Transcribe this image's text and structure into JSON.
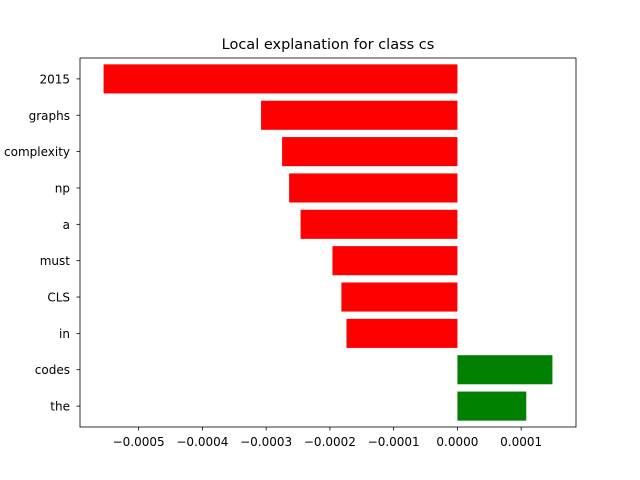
{
  "chart_data": {
    "type": "bar",
    "orientation": "horizontal",
    "title": "Local explanation for class cs",
    "xlabel": "",
    "ylabel": "",
    "categories": [
      "2015",
      "graphs",
      "complexity",
      "np",
      "a",
      "must",
      "CLS",
      "in",
      "codes",
      "the"
    ],
    "values": [
      -0.000555,
      -0.000308,
      -0.000275,
      -0.000264,
      -0.000246,
      -0.000196,
      -0.000182,
      -0.000174,
      0.000149,
      0.000108
    ],
    "colors": [
      "#ff0000",
      "#ff0000",
      "#ff0000",
      "#ff0000",
      "#ff0000",
      "#ff0000",
      "#ff0000",
      "#ff0000",
      "#008000",
      "#008000"
    ],
    "xlim": [
      -0.000592,
      0.000186
    ],
    "xticks": [
      -0.0005,
      -0.0004,
      -0.0003,
      -0.0002,
      -0.0001,
      0.0,
      0.0001
    ],
    "xtick_labels": [
      "−0.0005",
      "−0.0004",
      "−0.0003",
      "−0.0002",
      "−0.0001",
      "0.0000",
      "0.0001"
    ],
    "grid": false,
    "legend": "none"
  }
}
